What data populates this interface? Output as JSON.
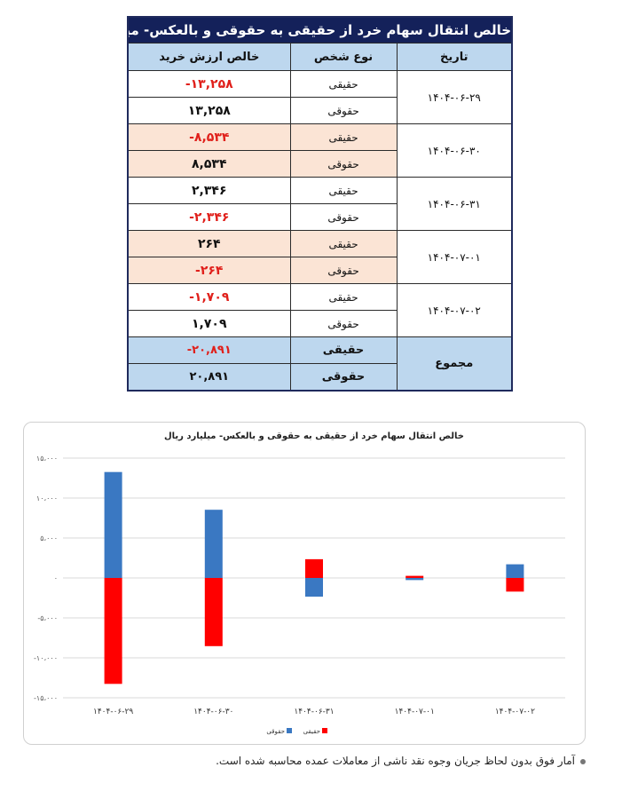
{
  "table": {
    "title": "خالص انتقال سهام خرد از حقیقی به حقوقی و بالعکس- میلیارد ریال",
    "headers": {
      "date": "تاریخ",
      "person_type": "نوع شخص",
      "net_value": "خالص ارزش خرید"
    },
    "groups": [
      {
        "date": "۱۴۰۴-۰۶-۲۹",
        "rows": [
          {
            "type": "حقیقی",
            "value": "-۱۳,۲۵۸",
            "negative": true
          },
          {
            "type": "حقوقی",
            "value": "۱۳,۲۵۸",
            "negative": false
          }
        ]
      },
      {
        "date": "۱۴۰۴-۰۶-۳۰",
        "rows": [
          {
            "type": "حقیقی",
            "value": "-۸,۵۳۴",
            "negative": true
          },
          {
            "type": "حقوقی",
            "value": "۸,۵۳۴",
            "negative": false
          }
        ]
      },
      {
        "date": "۱۴۰۴-۰۶-۳۱",
        "rows": [
          {
            "type": "حقیقی",
            "value": "۲,۳۴۶",
            "negative": false
          },
          {
            "type": "حقوقی",
            "value": "-۲,۳۴۶",
            "negative": true
          }
        ]
      },
      {
        "date": "۱۴۰۴-۰۷-۰۱",
        "rows": [
          {
            "type": "حقیقی",
            "value": "۲۶۴",
            "negative": false
          },
          {
            "type": "حقوقی",
            "value": "-۲۶۴",
            "negative": true
          }
        ]
      },
      {
        "date": "۱۴۰۴-۰۷-۰۲",
        "rows": [
          {
            "type": "حقیقی",
            "value": "-۱,۷۰۹",
            "negative": true
          },
          {
            "type": "حقوقی",
            "value": "۱,۷۰۹",
            "negative": false
          }
        ]
      }
    ],
    "total": {
      "label": "مجموع",
      "rows": [
        {
          "type": "حقیقی",
          "value": "-۲۰,۸۹۱",
          "negative": true
        },
        {
          "type": "حقوقی",
          "value": "۲۰,۸۹۱",
          "negative": false
        }
      ]
    }
  },
  "chart_data": {
    "type": "bar",
    "stacked": true,
    "title": "خالص انتقال سهام خرد از حقیقی به حقوقی و بالعکس- میلیارد ریال",
    "categories": [
      "۱۴۰۴-۰۶-۲۹",
      "۱۴۰۴-۰۶-۳۰",
      "۱۴۰۴-۰۶-۳۱",
      "۱۴۰۴-۰۷-۰۱",
      "۱۴۰۴-۰۷-۰۲"
    ],
    "series": [
      {
        "name": "حقیقی",
        "color": "#ff0000",
        "values": [
          -13258,
          -8534,
          2346,
          264,
          -1709
        ]
      },
      {
        "name": "حقوقی",
        "color": "#3a78c2",
        "values": [
          13258,
          8534,
          -2346,
          -264,
          1709
        ]
      }
    ],
    "ylim": [
      -15000,
      15000
    ],
    "yticks": [
      15000,
      10000,
      5000,
      0,
      -5000,
      -10000,
      -15000
    ],
    "ytick_labels": [
      "۱۵،۰۰۰",
      "۱۰،۰۰۰",
      "۵،۰۰۰",
      "۰",
      "-۵،۰۰۰",
      "-۱۰،۰۰۰",
      "-۱۵،۰۰۰"
    ],
    "grid": true,
    "legend_position": "bottom"
  },
  "footnote": "آمار فوق بدون لحاظ جریان وجوه نقد ناشی از معاملات عمده محاسبه شده است."
}
